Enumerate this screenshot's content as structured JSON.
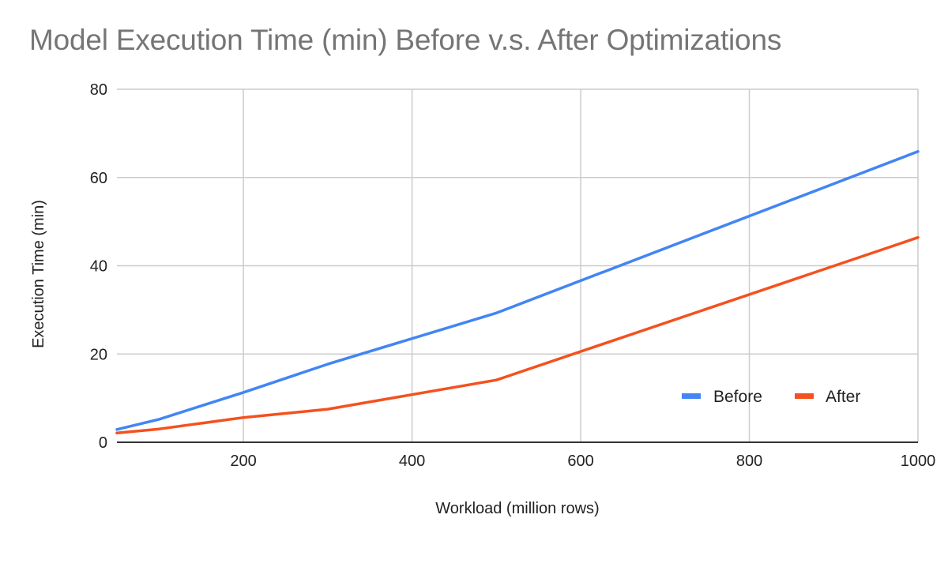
{
  "chart_data": {
    "type": "line",
    "title": "Model Execution Time (min) Before v.s. After Optimizations",
    "xlabel": "Workload (million rows)",
    "ylabel": "Execution Time (min)",
    "xlim": [
      50,
      1000
    ],
    "ylim": [
      0,
      80
    ],
    "xticks": [
      200,
      400,
      600,
      800,
      1000
    ],
    "xtick_labels": [
      "200",
      "400",
      "600",
      "800",
      "1000"
    ],
    "yticks": [
      0,
      20,
      40,
      60,
      80
    ],
    "ytick_labels": [
      "0",
      "20",
      "40",
      "60",
      "80"
    ],
    "grid": true,
    "legend_position": "bottom-right",
    "x": [
      50,
      100,
      200,
      300,
      500,
      1000
    ],
    "series": [
      {
        "name": "Before",
        "color": "#4285f4",
        "values": [
          2.9,
          5.2,
          11.3,
          17.7,
          29.3,
          65.9
        ]
      },
      {
        "name": "After",
        "color": "#f4511e",
        "values": [
          2.1,
          3.0,
          5.6,
          7.5,
          14.1,
          46.4
        ]
      }
    ]
  }
}
